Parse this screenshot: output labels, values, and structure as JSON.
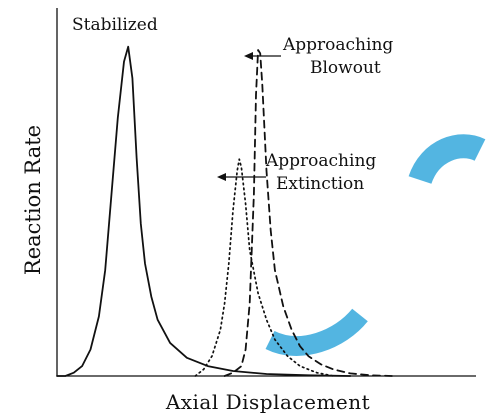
{
  "chart_data": {
    "type": "line",
    "title": "",
    "xlabel": "Axial Displacement",
    "ylabel": "Reaction Rate",
    "grid": false,
    "x_tick_labels": [],
    "y_tick_labels": [],
    "xlim": [
      0,
      1
    ],
    "ylim": [
      0,
      1
    ],
    "series": [
      {
        "name": "Stabilized",
        "line_style": "solid",
        "x": [
          0.0,
          0.02,
          0.04,
          0.06,
          0.08,
          0.1,
          0.115,
          0.13,
          0.145,
          0.16,
          0.17,
          0.18,
          0.19,
          0.2,
          0.21,
          0.225,
          0.24,
          0.27,
          0.31,
          0.36,
          0.42,
          0.5,
          0.6,
          0.7
        ],
        "y": [
          0.0,
          0.0,
          0.01,
          0.03,
          0.08,
          0.18,
          0.32,
          0.55,
          0.78,
          0.95,
          0.995,
          0.9,
          0.66,
          0.46,
          0.34,
          0.24,
          0.17,
          0.1,
          0.055,
          0.03,
          0.015,
          0.006,
          0.002,
          0.0
        ]
      },
      {
        "name": "Approaching Extinction",
        "line_style": "dotted",
        "x": [
          0.33,
          0.35,
          0.37,
          0.39,
          0.4,
          0.41,
          0.42,
          0.43,
          0.435,
          0.44,
          0.45,
          0.46,
          0.48,
          0.5,
          0.52,
          0.55,
          0.58,
          0.62,
          0.66
        ],
        "y": [
          0.0,
          0.02,
          0.06,
          0.14,
          0.22,
          0.34,
          0.5,
          0.62,
          0.655,
          0.63,
          0.52,
          0.38,
          0.25,
          0.17,
          0.11,
          0.06,
          0.03,
          0.01,
          0.0
        ]
      },
      {
        "name": "Approaching Blowout",
        "line_style": "dashed",
        "x": [
          0.4,
          0.42,
          0.44,
          0.45,
          0.46,
          0.47,
          0.475,
          0.48,
          0.485,
          0.49,
          0.5,
          0.51,
          0.52,
          0.54,
          0.56,
          0.58,
          0.6,
          0.63,
          0.66,
          0.7,
          0.75,
          0.8
        ],
        "y": [
          0.0,
          0.01,
          0.03,
          0.08,
          0.22,
          0.55,
          0.85,
          0.985,
          0.975,
          0.88,
          0.62,
          0.44,
          0.32,
          0.21,
          0.14,
          0.09,
          0.06,
          0.035,
          0.02,
          0.008,
          0.002,
          0.0
        ]
      }
    ],
    "annotations": [
      {
        "text": "Stabilized",
        "target_series": "Stabilized"
      },
      {
        "lines": [
          "Approaching",
          "Blowout"
        ],
        "target_series": "Approaching Blowout",
        "arrow": true
      },
      {
        "lines": [
          "Approaching",
          "Extinction"
        ],
        "target_series": "Approaching Extinction",
        "arrow": true
      }
    ]
  },
  "colors": {
    "lines": "#111111",
    "watermark": "#35a8dc"
  }
}
